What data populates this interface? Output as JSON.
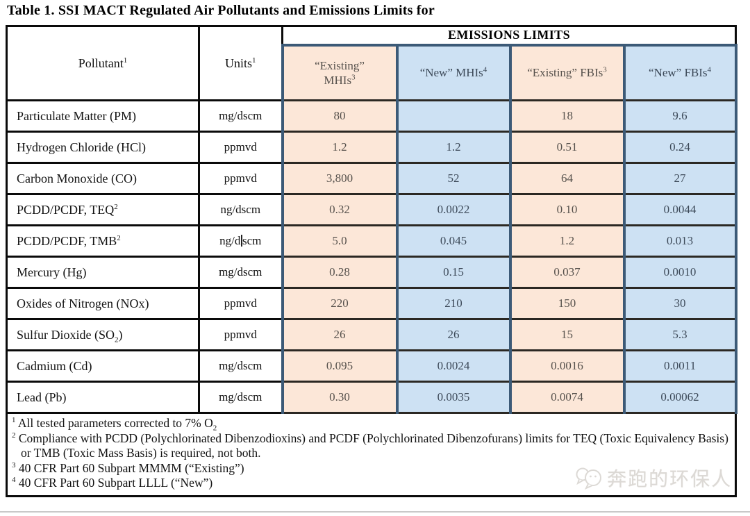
{
  "title": "Table 1. SSI MACT Regulated Air Pollutants and Emissions Limits for",
  "table": {
    "header": {
      "pollutant": [
        {
          "t": "Pollutant"
        },
        {
          "sup": "1"
        }
      ],
      "units": [
        {
          "t": "Units"
        },
        {
          "sup": "1"
        }
      ],
      "emissions_limits": "EMISSIONS LIMITS",
      "columns": [
        {
          "name": "existing-mhis",
          "scheme": "existing",
          "label": [
            {
              "t": "“Existing”"
            },
            {
              "br": true
            },
            {
              "t": "MHIs"
            },
            {
              "sup": "3"
            }
          ]
        },
        {
          "name": "new-mhis",
          "scheme": "new",
          "label": [
            {
              "t": "“New” MHIs"
            },
            {
              "sup": "4"
            }
          ]
        },
        {
          "name": "existing-fbis",
          "scheme": "existing",
          "label": [
            {
              "t": "“Existing” FBIs"
            },
            {
              "sup": "3"
            }
          ]
        },
        {
          "name": "new-fbis",
          "scheme": "new",
          "label": [
            {
              "t": "“New” FBIs"
            },
            {
              "sup": "4"
            }
          ]
        }
      ]
    },
    "rows": [
      {
        "pollutant": [
          {
            "t": "Particulate Matter (PM)"
          }
        ],
        "units": [
          "mg/dscm"
        ],
        "values": [
          "80",
          "",
          "18",
          "9.6"
        ]
      },
      {
        "pollutant": [
          {
            "t": "Hydrogen Chloride (HCl)"
          }
        ],
        "units": [
          "ppmvd"
        ],
        "values": [
          "1.2",
          "1.2",
          "0.51",
          "0.24"
        ]
      },
      {
        "pollutant": [
          {
            "t": "Carbon Monoxide (CO)"
          }
        ],
        "units": [
          "ppmvd"
        ],
        "values": [
          "3,800",
          "52",
          "64",
          "27"
        ]
      },
      {
        "pollutant": [
          {
            "t": "PCDD/PCDF, TEQ"
          },
          {
            "sup": "2"
          }
        ],
        "units": [
          "ng/dscm"
        ],
        "values": [
          "0.32",
          "0.0022",
          "0.10",
          "0.0044"
        ]
      },
      {
        "pollutant": [
          {
            "t": "PCDD/PCDF, TMB"
          },
          {
            "sup": "2"
          }
        ],
        "units": [
          "ng/d",
          "scm"
        ],
        "cursor": true,
        "values": [
          "5.0",
          "0.045",
          "1.2",
          "0.013"
        ]
      },
      {
        "pollutant": [
          {
            "t": "Mercury (Hg)"
          }
        ],
        "units": [
          "mg/dscm"
        ],
        "values": [
          "0.28",
          "0.15",
          "0.037",
          "0.0010"
        ]
      },
      {
        "pollutant": [
          {
            "t": "Oxides of Nitrogen (NOx)"
          }
        ],
        "units": [
          "ppmvd"
        ],
        "values": [
          "220",
          "210",
          "150",
          "30"
        ]
      },
      {
        "pollutant": [
          {
            "t": "Sulfur Dioxide (SO"
          },
          {
            "sub": "2"
          },
          {
            "t": ")"
          }
        ],
        "units": [
          "ppmvd"
        ],
        "values": [
          "26",
          "26",
          "15",
          "5.3"
        ]
      },
      {
        "pollutant": [
          {
            "t": "Cadmium (Cd)"
          }
        ],
        "units": [
          "mg/dscm"
        ],
        "values": [
          "0.095",
          "0.0024",
          "0.0016",
          "0.0011"
        ]
      },
      {
        "pollutant": [
          {
            "t": "Lead (Pb)"
          }
        ],
        "units": [
          "mg/dscm"
        ],
        "values": [
          "0.30",
          "0.0035",
          "0.0074",
          "0.00062"
        ]
      }
    ],
    "footnotes": [
      {
        "marker": "1",
        "segments": [
          {
            "t": "All tested parameters corrected to 7% O"
          },
          {
            "sub": "2"
          }
        ]
      },
      {
        "marker": "2",
        "segments": [
          {
            "t": "Compliance with PCDD (Polychlorinated Dibenzodioxins) and PCDF (Polychlorinated Dibenzofurans) limits for TEQ (Toxic Equivalency Basis) or TMB (Toxic Mass Basis) is required, not both."
          }
        ]
      },
      {
        "marker": "3",
        "segments": [
          {
            "t": "40 CFR Part 60 Subpart MMMM (“Existing”)"
          }
        ]
      },
      {
        "marker": "4",
        "segments": [
          {
            "t": "40 CFR Part 60 Subpart LLLL (“New”)"
          }
        ]
      }
    ]
  },
  "colors": {
    "existing_bg": "#fce7d8",
    "new_bg": "#cde1f3",
    "limit_border": "#3c5a77",
    "grid_line": "#0a0a0a"
  },
  "watermark": {
    "icon": "chat-bubbles-icon",
    "text": "奔跑的环保人"
  }
}
